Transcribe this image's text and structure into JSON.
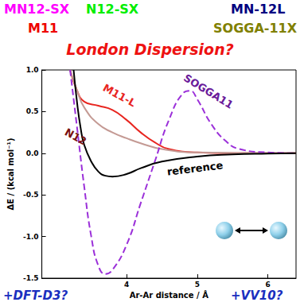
{
  "chart_data": {
    "type": "line",
    "title": "London Dispersion?",
    "annotations": [
      {
        "text": "MN12-SX",
        "color": "#ff00ff"
      },
      {
        "text": "N12-SX",
        "color": "#00ee00"
      },
      {
        "text": "MN-12L",
        "color": "#000080"
      },
      {
        "text": "M11",
        "color": "#ee0000"
      },
      {
        "text": "SOGGA-11X",
        "color": "#808000"
      },
      {
        "text": "+DFT-D3?",
        "color": "#1a2fbf"
      },
      {
        "text": "+VV10?",
        "color": "#1a2fbf"
      }
    ],
    "x_label": "Ar-Ar distance / Å",
    "y_label": "ΔE / (kcal mol⁻¹)",
    "xlim": [
      2.8,
      6.4
    ],
    "xticks": [
      4,
      5,
      6
    ],
    "ylim": [
      -1.5,
      1.0
    ],
    "yticks": [
      -1.5,
      {
        "value": -1,
        "label": "-1.0"
      },
      -0.5,
      {
        "value": 0,
        "label": "0.0"
      },
      0.5,
      {
        "value": 1,
        "label": "1.0"
      }
    ],
    "grid": false,
    "series": [
      {
        "name": "M11-L",
        "color": "#e8251f",
        "line_style": "solid",
        "x": [
          3.2,
          3.3,
          3.4,
          3.6,
          3.8,
          4.0,
          4.2,
          4.4,
          4.6,
          5.0,
          5.5,
          6.4
        ],
        "values": [
          1.0,
          0.75,
          0.62,
          0.57,
          0.52,
          0.4,
          0.25,
          0.13,
          0.05,
          0.01,
          0.0,
          0.0
        ]
      },
      {
        "name": "N12",
        "color": "#c49a94",
        "line_style": "solid",
        "x": [
          3.2,
          3.3,
          3.4,
          3.6,
          3.8,
          4.0,
          4.2,
          4.5,
          5.0,
          6.4
        ],
        "values": [
          1.0,
          0.75,
          0.55,
          0.35,
          0.25,
          0.18,
          0.12,
          0.05,
          0.01,
          0.0
        ]
      },
      {
        "name": "SOGGA11",
        "color": "#9b30d9",
        "line_style": "dashed",
        "x": [
          3.2,
          3.3,
          3.4,
          3.5,
          3.6,
          3.7,
          3.8,
          4.0,
          4.2,
          4.4,
          4.6,
          4.8,
          4.9,
          5.0,
          5.2,
          5.4,
          5.6,
          6.0,
          6.4
        ],
        "values": [
          1.0,
          0.3,
          -0.4,
          -1.0,
          -1.35,
          -1.45,
          -1.4,
          -1.1,
          -0.6,
          -0.1,
          0.4,
          0.72,
          0.75,
          0.65,
          0.35,
          0.15,
          0.05,
          0.01,
          0.0
        ]
      },
      {
        "name": "reference",
        "color": "#000000",
        "line_style": "solid",
        "x": [
          3.25,
          3.3,
          3.35,
          3.4,
          3.5,
          3.6,
          3.7,
          3.8,
          4.0,
          4.2,
          4.5,
          5.0,
          5.5,
          6.0,
          6.4
        ],
        "values": [
          1.0,
          0.6,
          0.3,
          0.1,
          -0.1,
          -0.22,
          -0.27,
          -0.28,
          -0.25,
          -0.18,
          -0.1,
          -0.04,
          -0.015,
          -0.005,
          0.0
        ]
      }
    ]
  }
}
